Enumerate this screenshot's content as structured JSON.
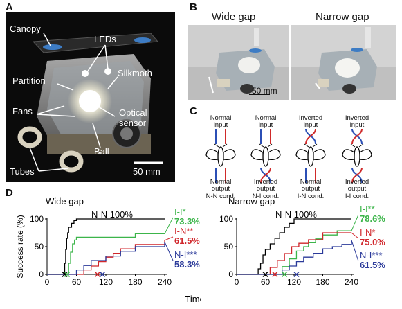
{
  "panels": {
    "a": "A",
    "b": "B",
    "c": "C",
    "d": "D"
  },
  "photo_a": {
    "labels": {
      "canopy": "Canopy",
      "leds": "LEDs",
      "partition": "Partition",
      "silkmoth": "Silkmoth",
      "fans": "Fans",
      "optical": "Optical",
      "sensor": "sensor",
      "ball": "Ball",
      "tubes": "Tubes",
      "scale": "50 mm"
    }
  },
  "photo_b": {
    "wide_title": "Wide gap",
    "narrow_title": "Narrow gap",
    "scale": "50 mm"
  },
  "conditions": [
    {
      "input": "Normal input",
      "output": "Normal output",
      "cond": "N-N cond.",
      "in_lines": [
        "Normal",
        "input"
      ],
      "out_lines": [
        "Normal",
        "output"
      ]
    },
    {
      "input": "Normal input",
      "output": "Inverted output",
      "cond": "N-I cond.",
      "in_lines": [
        "Normal",
        "input"
      ],
      "out_lines": [
        "Inverted",
        "output"
      ]
    },
    {
      "input": "Inverted input",
      "output": "Normal output",
      "cond": "I-N cond.",
      "in_lines": [
        "Inverted",
        "input"
      ],
      "out_lines": [
        "Normal",
        "output"
      ]
    },
    {
      "input": "Inverted input",
      "output": "Inverted output",
      "cond": "I-I cond.",
      "in_lines": [
        "Inverted",
        "input"
      ],
      "out_lines": [
        "Inverted",
        "output"
      ]
    }
  ],
  "colors": {
    "nn": "#000000",
    "ni": "#2b3a9a",
    "in": "#d0262b",
    "ii": "#3cb54a",
    "blue": "#2b4fb5",
    "red": "#cf2a2a"
  },
  "chart_data": [
    {
      "type": "line",
      "title": "Wide gap",
      "xlabel": "Time (s)",
      "ylabel": "Success rate (%)",
      "xlim": [
        0,
        240
      ],
      "ylim": [
        0,
        100
      ],
      "xticks": [
        0,
        60,
        120,
        180,
        240
      ],
      "yticks": [
        0,
        50,
        100
      ],
      "series": [
        {
          "name": "N-N",
          "label": "N-N 100%",
          "color": "#000000",
          "x": [
            0,
            34,
            36,
            38,
            40,
            42,
            44,
            50,
            55,
            60,
            240
          ],
          "y": [
            0,
            0,
            20,
            45,
            65,
            75,
            85,
            92,
            97,
            100,
            100
          ]
        },
        {
          "name": "I-I",
          "label_name": "I-I*",
          "label_value": "73.3%",
          "color": "#3cb54a",
          "x": [
            0,
            40,
            44,
            48,
            52,
            56,
            60,
            150,
            180,
            210,
            240
          ],
          "y": [
            0,
            0,
            20,
            40,
            55,
            62,
            67,
            67,
            73.3,
            73.3,
            73.3
          ]
        },
        {
          "name": "I-N",
          "label_name": "I-N**",
          "label_value": "61.5%",
          "color": "#d0262b",
          "x": [
            0,
            60,
            75,
            90,
            105,
            120,
            135,
            150,
            180,
            210,
            240
          ],
          "y": [
            0,
            0,
            8,
            15,
            23,
            31,
            38,
            46,
            53.8,
            53.8,
            61.5
          ]
        },
        {
          "name": "N-I",
          "label_name": "N-I***",
          "label_value": "58.3%",
          "color": "#2b3a9a",
          "x": [
            0,
            45,
            60,
            75,
            90,
            120,
            150,
            180,
            210,
            240
          ],
          "y": [
            0,
            0,
            8,
            16,
            25,
            33,
            41.6,
            50,
            50,
            58.3
          ]
        }
      ],
      "markers": [
        {
          "x": 36,
          "color": "#000000"
        },
        {
          "x": 41,
          "color": "#3cb54a"
        },
        {
          "x": 103,
          "color": "#d0262b"
        },
        {
          "x": 113,
          "color": "#2b3a9a"
        }
      ]
    },
    {
      "type": "line",
      "title": "Narrow gap",
      "xlabel": "Time (s)",
      "ylabel": "",
      "xlim": [
        0,
        240
      ],
      "ylim": [
        0,
        100
      ],
      "xticks": [
        0,
        60,
        120,
        180,
        240
      ],
      "yticks": [
        0,
        50,
        100
      ],
      "series": [
        {
          "name": "N-N",
          "label": "N-N 100%",
          "color": "#000000",
          "x": [
            0,
            40,
            45,
            50,
            55,
            60,
            70,
            80,
            90,
            100,
            110,
            120,
            240
          ],
          "y": [
            0,
            0,
            10,
            20,
            35,
            45,
            55,
            65,
            75,
            85,
            92,
            100,
            100
          ]
        },
        {
          "name": "I-I",
          "label_name": "I-I**",
          "label_value": "78.6%",
          "color": "#3cb54a",
          "x": [
            0,
            80,
            95,
            110,
            125,
            140,
            150,
            165,
            180,
            210,
            240
          ],
          "y": [
            0,
            0,
            14,
            28,
            42,
            50,
            57,
            64,
            71,
            78.6,
            78.6
          ]
        },
        {
          "name": "I-N",
          "label_name": "I-N*",
          "label_value": "75.0%",
          "color": "#d0262b",
          "x": [
            0,
            55,
            70,
            85,
            100,
            115,
            130,
            150,
            180,
            240
          ],
          "y": [
            0,
            0,
            12.5,
            25,
            37.5,
            50,
            56,
            62.5,
            75,
            75
          ]
        },
        {
          "name": "N-I",
          "label_name": "N-I***",
          "label_value": "61.5%",
          "color": "#2b3a9a",
          "x": [
            0,
            80,
            95,
            110,
            125,
            140,
            160,
            180,
            200,
            220,
            240
          ],
          "y": [
            0,
            0,
            8,
            15,
            23,
            31,
            38,
            46,
            50,
            54,
            61.5
          ]
        }
      ],
      "markers": [
        {
          "x": 60,
          "color": "#000000"
        },
        {
          "x": 80,
          "color": "#d0262b"
        },
        {
          "x": 100,
          "color": "#3cb54a"
        },
        {
          "x": 125,
          "color": "#2b3a9a"
        }
      ]
    }
  ]
}
